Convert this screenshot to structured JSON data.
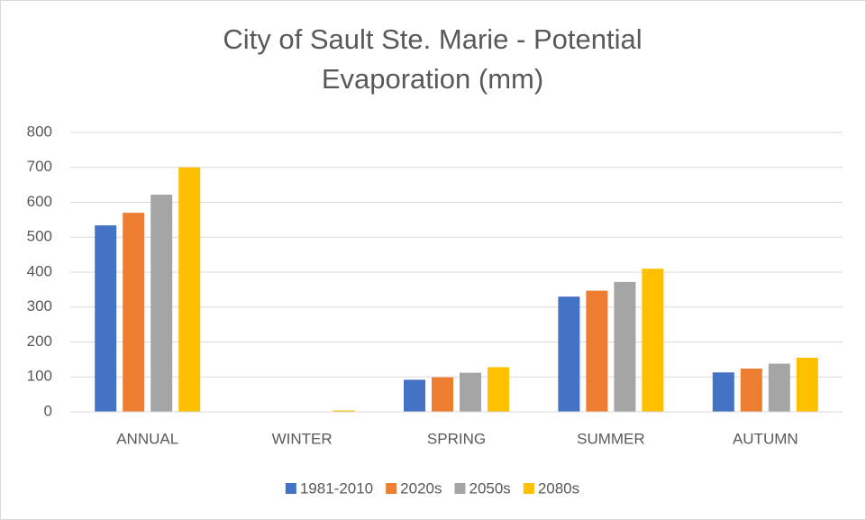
{
  "chart_data": {
    "type": "bar",
    "title": "City of Sault Ste. Marie - Potential Evaporation (mm)",
    "categories": [
      "ANNUAL",
      "WINTER",
      "SPRING",
      "SUMMER",
      "AUTUMN"
    ],
    "series": [
      {
        "name": "1981-2010",
        "color": "#4472c4",
        "values": [
          534,
          0,
          92,
          330,
          113
        ]
      },
      {
        "name": "2020s",
        "color": "#ed7d31",
        "values": [
          570,
          0,
          99,
          347,
          124
        ]
      },
      {
        "name": "2050s",
        "color": "#a5a5a5",
        "values": [
          622,
          1,
          112,
          372,
          138
        ]
      },
      {
        "name": "2080s",
        "color": "#ffc000",
        "values": [
          700,
          4,
          128,
          410,
          155
        ]
      }
    ],
    "ylim": [
      0,
      800
    ],
    "yticks": [
      0,
      100,
      200,
      300,
      400,
      500,
      600,
      700,
      800
    ],
    "grid": true,
    "legend": "bottom"
  }
}
